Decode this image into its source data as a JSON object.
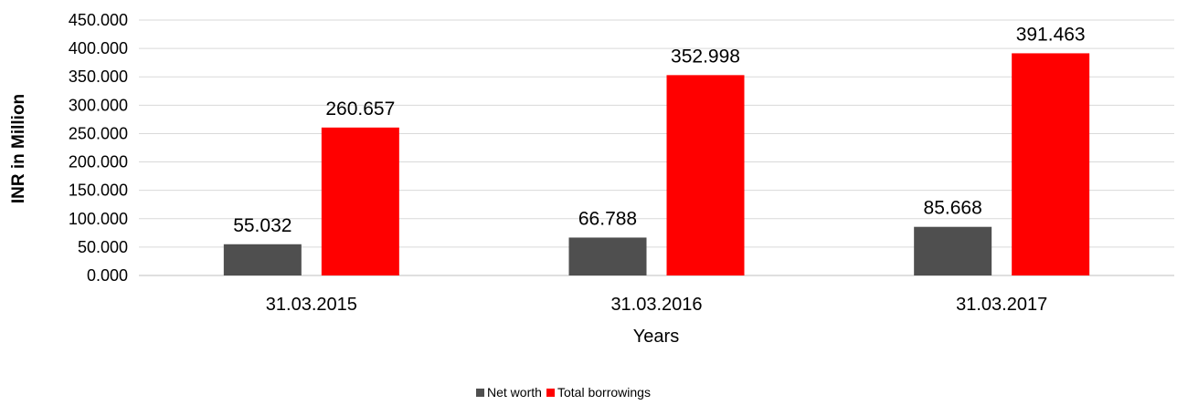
{
  "chart_data": {
    "type": "bar",
    "categories": [
      "31.03.2015",
      "31.03.2016",
      "31.03.2017"
    ],
    "series": [
      {
        "name": "Net worth",
        "color": "#4f4f4f",
        "values": [
          55.032,
          66.788,
          85.668
        ]
      },
      {
        "name": "Total borrowings",
        "color": "#ff0000",
        "values": [
          260.657,
          352.998,
          391.463
        ]
      }
    ],
    "data_labels": [
      [
        "55.032",
        "66.788",
        "85.668"
      ],
      [
        "260.657",
        "352.998",
        "391.463"
      ]
    ],
    "ylabel": "INR in Million",
    "xlabel": "Years",
    "ylim": [
      0,
      450
    ],
    "yticks": [
      0,
      50,
      100,
      150,
      200,
      250,
      300,
      350,
      400,
      450
    ],
    "ytick_labels": [
      "0.000",
      "50.000",
      "100.000",
      "150.000",
      "200.000",
      "250.000",
      "300.000",
      "350.000",
      "400.000",
      "450.000"
    ],
    "grid": "horizontal",
    "gridline_color": "#d9d9d9",
    "legend_position": "bottom-center"
  }
}
